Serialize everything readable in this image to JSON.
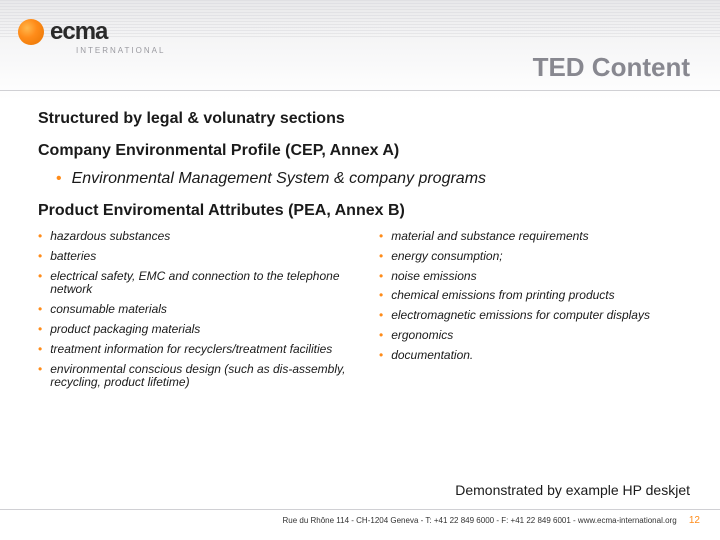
{
  "logo": {
    "text": "ecma",
    "sub": "INTERNATIONAL"
  },
  "title": "TED Content",
  "heading1": "Structured by legal & volunatry sections",
  "heading2": "Company Environmental Profile (CEP, Annex A)",
  "sub_bullet": "Environmental Management System & company programs",
  "heading3": "Product Enviromental Attributes (PEA, Annex B)",
  "left_items": [
    "hazardous substances",
    "batteries",
    "electrical safety, EMC and connection to the telephone network",
    "consumable materials",
    "product packaging materials",
    "treatment information for recyclers/treatment facilities",
    "environmental conscious design (such as dis-assembly, recycling, product lifetime)"
  ],
  "right_items": [
    "material and substance requirements",
    "energy consumption;",
    "noise emissions",
    "chemical emissions from printing products",
    "electromagnetic emissions for computer displays",
    "ergonomics",
    "documentation."
  ],
  "demo_text": "Demonstrated by example HP deskjet",
  "footer_text": "Rue du Rhône 114 - CH-1204 Geneva - T: +41 22 849 6000 - F: +41 22 849 6001 - www.ecma-international.org",
  "page_num": "12",
  "colors": {
    "accent": "#ff8c1a",
    "title_gray": "#888890",
    "text": "#1a1a1a"
  }
}
